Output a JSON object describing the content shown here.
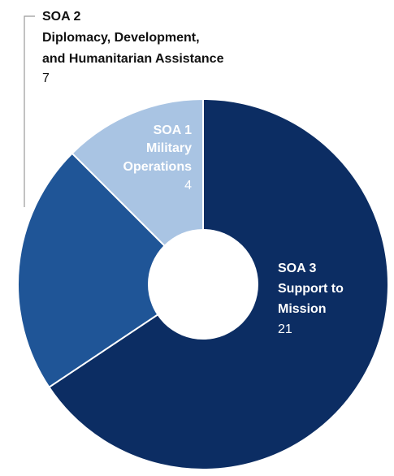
{
  "chart_data": {
    "type": "pie",
    "variant": "donut",
    "slices": [
      {
        "code": "SOA 3",
        "label_lines": [
          "Support to",
          "Mission"
        ],
        "value": 21,
        "value_text": "21",
        "color": "#0c2d63"
      },
      {
        "code": "SOA 2",
        "label_lines": [
          "Diplomacy, Development,",
          "and Humanitarian Assistance"
        ],
        "value": 7,
        "value_text": "7",
        "color": "#1f5597"
      },
      {
        "code": "SOA 1",
        "label_lines": [
          "Military",
          "Operations"
        ],
        "value": 4,
        "value_text": "4",
        "color": "#a9c4e3"
      }
    ],
    "start_angle": "top, clockwise",
    "legend": "none",
    "colors": {
      "dark_label_text": "#111111",
      "light_label_text": "#ffffff",
      "leader_line": "#9a9a9a",
      "hole": "#ffffff"
    }
  }
}
